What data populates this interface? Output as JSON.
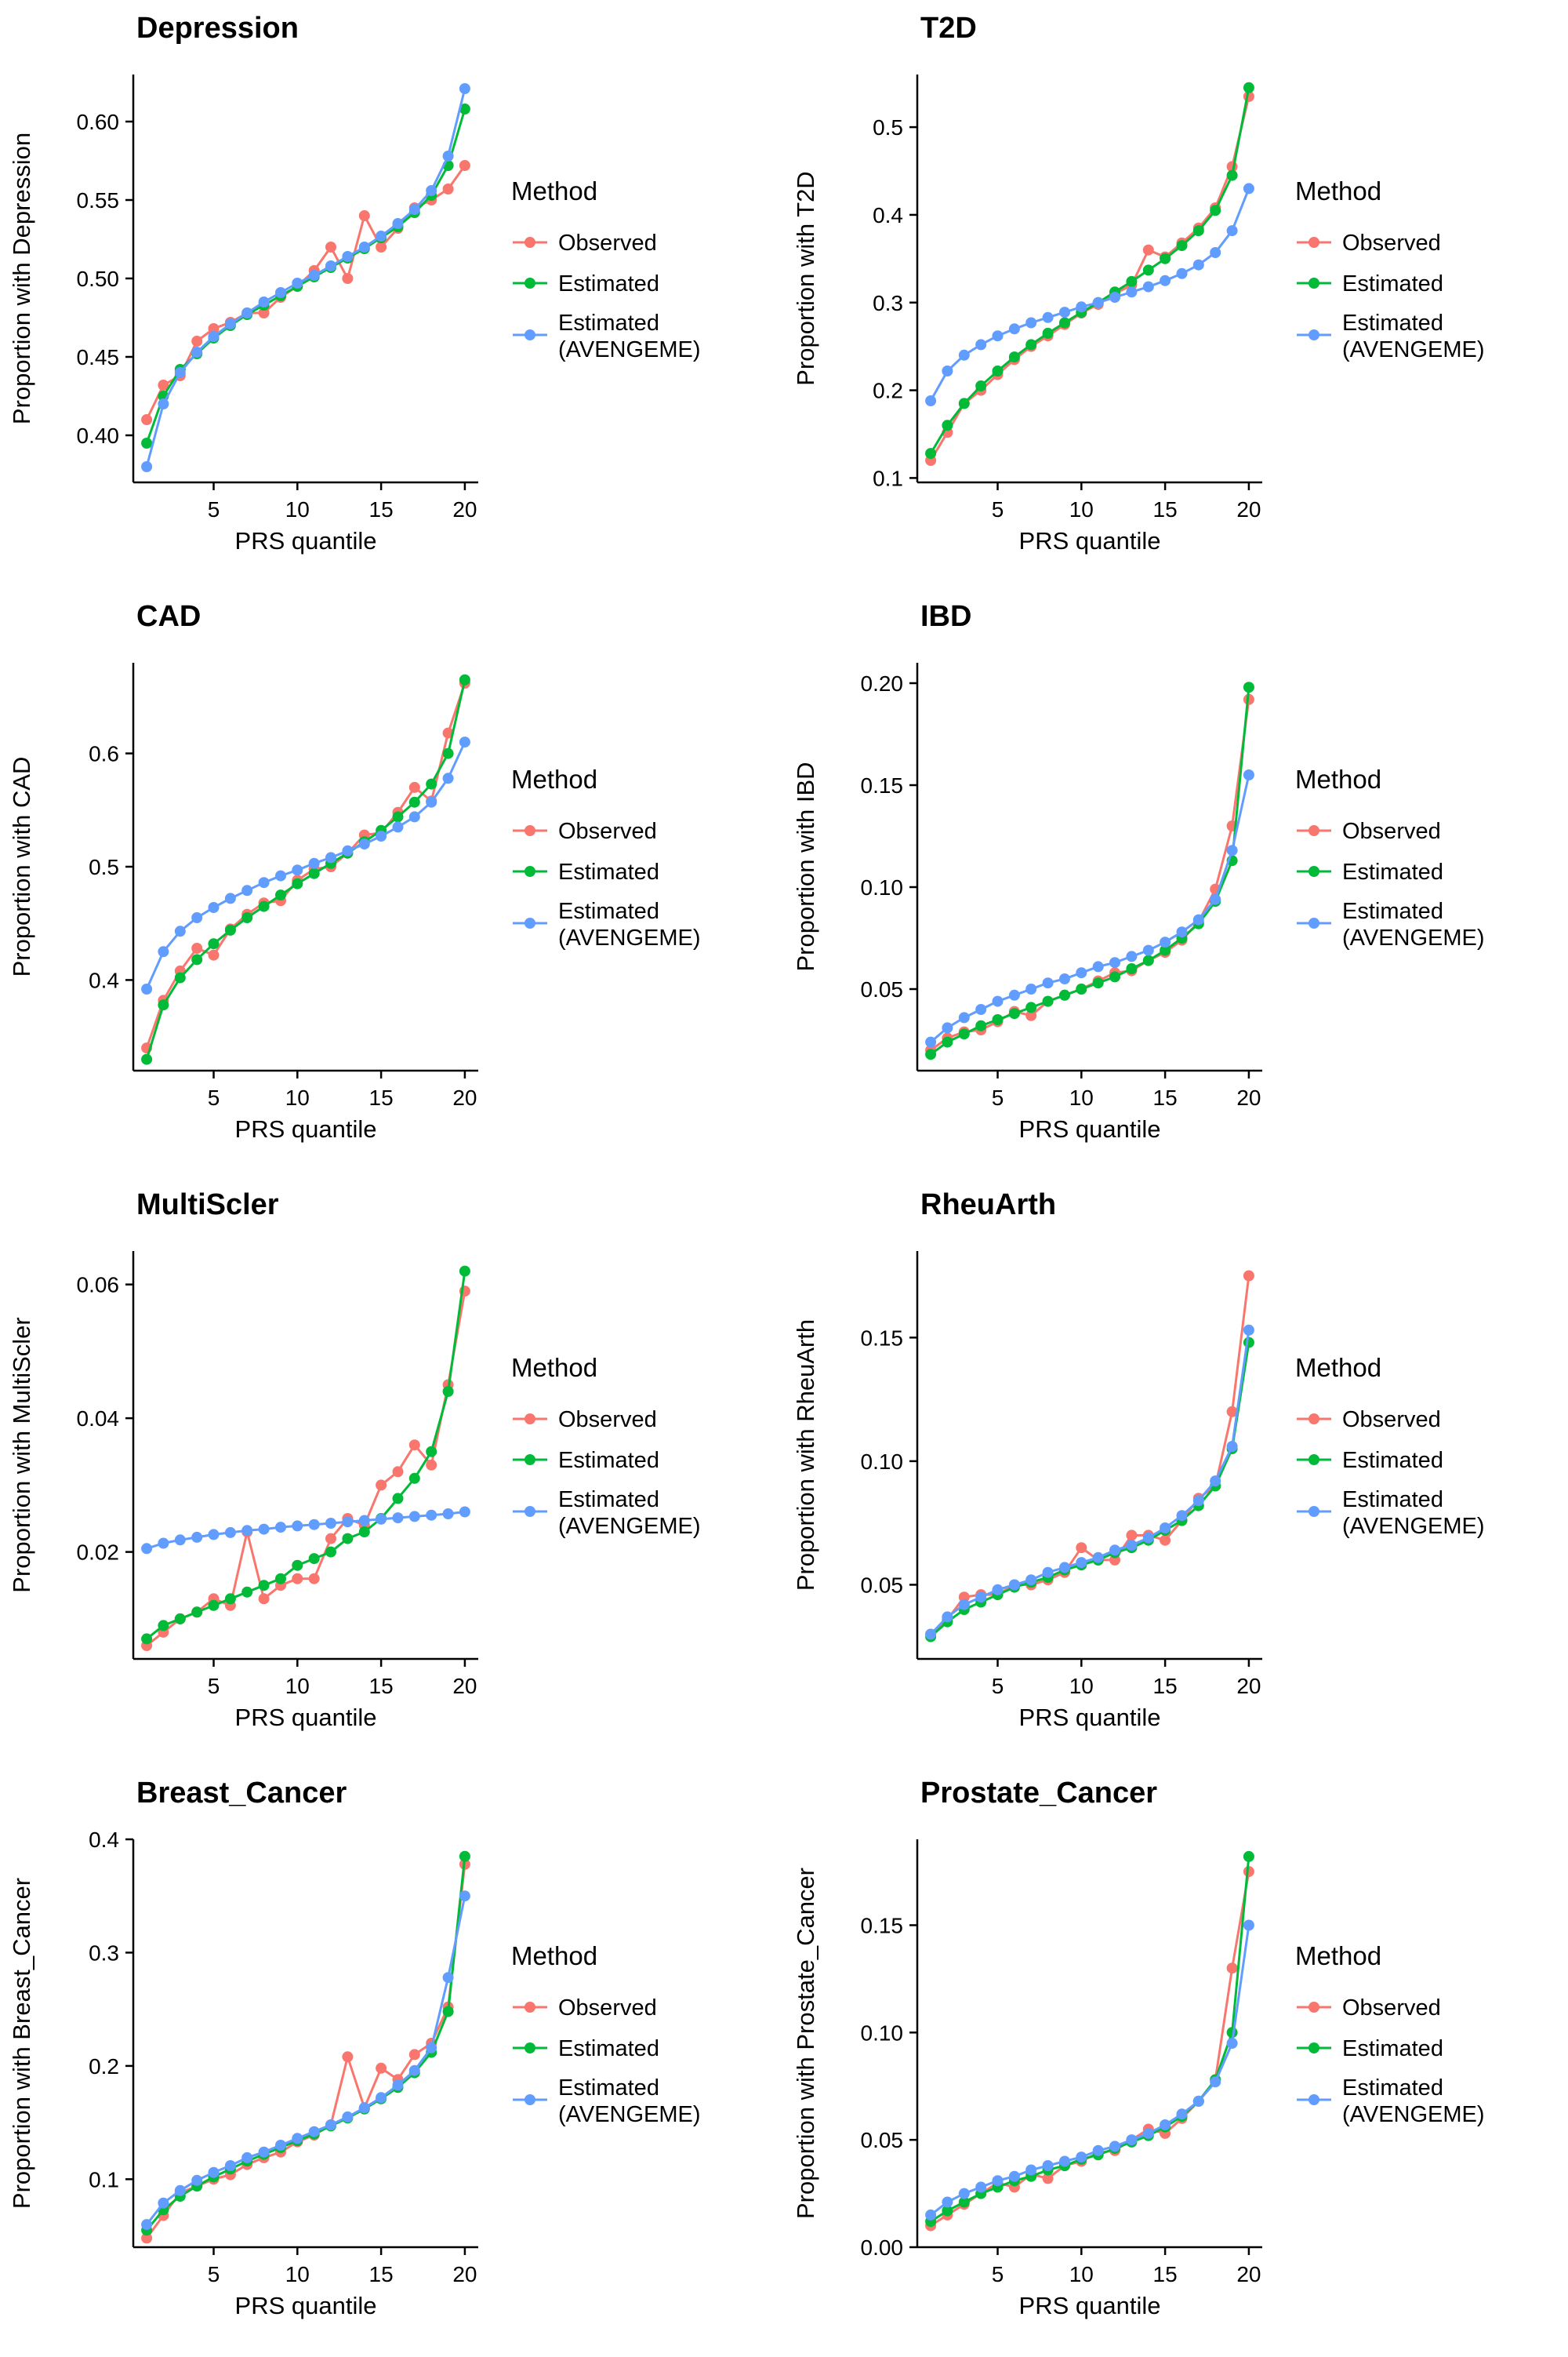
{
  "page": {
    "background": "#ffffff",
    "layout": "4x2 grid of quantile plots"
  },
  "colors": {
    "observed": "#F8766D",
    "estimated": "#00BA38",
    "avengeme": "#619CFF",
    "axis": "#000000",
    "text": "#000000"
  },
  "legend": {
    "title": "Method",
    "position": "right",
    "items": [
      {
        "key": "observed",
        "label": "Observed",
        "label_lines": [
          "Observed"
        ]
      },
      {
        "key": "estimated",
        "label": "Estimated",
        "label_lines": [
          "Estimated"
        ]
      },
      {
        "key": "avengeme",
        "label": "Estimated (AVENGEME)",
        "label_lines": [
          "Estimated",
          "(AVENGEME)"
        ]
      }
    ]
  },
  "x_axis": {
    "label": "PRS quantile",
    "ticks": [
      5,
      10,
      15,
      20
    ],
    "range": [
      1,
      20
    ]
  },
  "chart_data": [
    {
      "type": "line",
      "title": "Depression",
      "xlabel": "PRS quantile",
      "ylabel": "Proportion with Depression",
      "grid": false,
      "ylim": [
        0.37,
        0.63
      ],
      "yticks": [
        "0.40",
        "0.45",
        "0.50",
        "0.55",
        "0.60"
      ],
      "ytick_values": [
        0.4,
        0.45,
        0.5,
        0.55,
        0.6
      ],
      "x": [
        1,
        2,
        3,
        4,
        5,
        6,
        7,
        8,
        9,
        10,
        11,
        12,
        13,
        14,
        15,
        16,
        17,
        18,
        19,
        20
      ],
      "series": [
        {
          "name": "Observed",
          "color_key": "observed",
          "label_lines": [
            "Observed"
          ],
          "values": [
            0.41,
            0.432,
            0.438,
            0.46,
            0.468,
            0.472,
            0.478,
            0.478,
            0.488,
            0.495,
            0.505,
            0.52,
            0.5,
            0.54,
            0.52,
            0.532,
            0.545,
            0.55,
            0.557,
            0.572
          ]
        },
        {
          "name": "Estimated",
          "color_key": "estimated",
          "label_lines": [
            "Estimated"
          ],
          "values": [
            0.395,
            0.425,
            0.442,
            0.452,
            0.462,
            0.47,
            0.477,
            0.483,
            0.489,
            0.495,
            0.501,
            0.507,
            0.513,
            0.519,
            0.526,
            0.533,
            0.542,
            0.553,
            0.572,
            0.608
          ]
        },
        {
          "name": "Estimated (AVENGEME)",
          "color_key": "avengeme",
          "label_lines": [
            "Estimated",
            "(AVENGEME)"
          ],
          "values": [
            0.38,
            0.42,
            0.44,
            0.453,
            0.463,
            0.471,
            0.478,
            0.485,
            0.491,
            0.497,
            0.502,
            0.508,
            0.514,
            0.52,
            0.527,
            0.535,
            0.544,
            0.556,
            0.578,
            0.621
          ]
        }
      ]
    },
    {
      "type": "line",
      "title": "T2D",
      "xlabel": "PRS quantile",
      "ylabel": "Proportion with T2D",
      "grid": false,
      "ylim": [
        0.095,
        0.56
      ],
      "yticks": [
        "0.1",
        "0.2",
        "0.3",
        "0.4",
        "0.5"
      ],
      "ytick_values": [
        0.1,
        0.2,
        0.3,
        0.4,
        0.5
      ],
      "x": [
        1,
        2,
        3,
        4,
        5,
        6,
        7,
        8,
        9,
        10,
        11,
        12,
        13,
        14,
        15,
        16,
        17,
        18,
        19,
        20
      ],
      "series": [
        {
          "name": "Observed",
          "color_key": "observed",
          "label_lines": [
            "Observed"
          ],
          "values": [
            0.12,
            0.152,
            0.185,
            0.2,
            0.218,
            0.235,
            0.25,
            0.262,
            0.275,
            0.288,
            0.298,
            0.31,
            0.32,
            0.36,
            0.352,
            0.368,
            0.385,
            0.408,
            0.455,
            0.535
          ]
        },
        {
          "name": "Estimated",
          "color_key": "estimated",
          "label_lines": [
            "Estimated"
          ],
          "values": [
            0.128,
            0.16,
            0.185,
            0.205,
            0.222,
            0.238,
            0.252,
            0.265,
            0.277,
            0.289,
            0.3,
            0.312,
            0.324,
            0.337,
            0.35,
            0.365,
            0.382,
            0.405,
            0.445,
            0.545
          ]
        },
        {
          "name": "Estimated (AVENGEME)",
          "color_key": "avengeme",
          "label_lines": [
            "Estimated",
            "(AVENGEME)"
          ],
          "values": [
            0.188,
            0.222,
            0.24,
            0.252,
            0.262,
            0.27,
            0.277,
            0.283,
            0.289,
            0.295,
            0.3,
            0.306,
            0.312,
            0.318,
            0.325,
            0.333,
            0.343,
            0.357,
            0.382,
            0.43
          ]
        }
      ]
    },
    {
      "type": "line",
      "title": "CAD",
      "xlabel": "PRS quantile",
      "ylabel": "Proportion with CAD",
      "grid": false,
      "ylim": [
        0.32,
        0.68
      ],
      "yticks": [
        "0.4",
        "0.5",
        "0.6"
      ],
      "ytick_values": [
        0.4,
        0.5,
        0.6
      ],
      "x": [
        1,
        2,
        3,
        4,
        5,
        6,
        7,
        8,
        9,
        10,
        11,
        12,
        13,
        14,
        15,
        16,
        17,
        18,
        19,
        20
      ],
      "series": [
        {
          "name": "Observed",
          "color_key": "observed",
          "label_lines": [
            "Observed"
          ],
          "values": [
            0.34,
            0.382,
            0.408,
            0.428,
            0.422,
            0.445,
            0.458,
            0.468,
            0.47,
            0.488,
            0.498,
            0.5,
            0.512,
            0.528,
            0.53,
            0.548,
            0.57,
            0.558,
            0.618,
            0.662
          ]
        },
        {
          "name": "Estimated",
          "color_key": "estimated",
          "label_lines": [
            "Estimated"
          ],
          "values": [
            0.33,
            0.378,
            0.402,
            0.418,
            0.432,
            0.444,
            0.455,
            0.465,
            0.475,
            0.485,
            0.494,
            0.503,
            0.512,
            0.522,
            0.532,
            0.544,
            0.557,
            0.573,
            0.6,
            0.665
          ]
        },
        {
          "name": "Estimated (AVENGEME)",
          "color_key": "avengeme",
          "label_lines": [
            "Estimated",
            "(AVENGEME)"
          ],
          "values": [
            0.392,
            0.425,
            0.443,
            0.455,
            0.464,
            0.472,
            0.479,
            0.486,
            0.492,
            0.497,
            0.503,
            0.508,
            0.514,
            0.52,
            0.527,
            0.535,
            0.544,
            0.557,
            0.578,
            0.61
          ]
        }
      ]
    },
    {
      "type": "line",
      "title": "IBD",
      "xlabel": "PRS quantile",
      "ylabel": "Proportion with IBD",
      "grid": false,
      "ylim": [
        0.01,
        0.21
      ],
      "yticks": [
        "0.05",
        "0.10",
        "0.15",
        "0.20"
      ],
      "ytick_values": [
        0.05,
        0.1,
        0.15,
        0.2
      ],
      "x": [
        1,
        2,
        3,
        4,
        5,
        6,
        7,
        8,
        9,
        10,
        11,
        12,
        13,
        14,
        15,
        16,
        17,
        18,
        19,
        20
      ],
      "series": [
        {
          "name": "Observed",
          "color_key": "observed",
          "label_lines": [
            "Observed"
          ],
          "values": [
            0.02,
            0.026,
            0.029,
            0.03,
            0.034,
            0.039,
            0.037,
            0.044,
            0.047,
            0.05,
            0.054,
            0.058,
            0.059,
            0.064,
            0.068,
            0.074,
            0.083,
            0.099,
            0.13,
            0.192
          ]
        },
        {
          "name": "Estimated",
          "color_key": "estimated",
          "label_lines": [
            "Estimated"
          ],
          "values": [
            0.018,
            0.024,
            0.028,
            0.032,
            0.035,
            0.038,
            0.041,
            0.044,
            0.047,
            0.05,
            0.053,
            0.056,
            0.06,
            0.064,
            0.069,
            0.075,
            0.082,
            0.093,
            0.113,
            0.198
          ]
        },
        {
          "name": "Estimated (AVENGEME)",
          "color_key": "avengeme",
          "label_lines": [
            "Estimated",
            "(AVENGEME)"
          ],
          "values": [
            0.024,
            0.031,
            0.036,
            0.04,
            0.044,
            0.047,
            0.05,
            0.053,
            0.055,
            0.058,
            0.061,
            0.063,
            0.066,
            0.069,
            0.073,
            0.078,
            0.084,
            0.094,
            0.118,
            0.155
          ]
        }
      ]
    },
    {
      "type": "line",
      "title": "MultiScler",
      "xlabel": "PRS quantile",
      "ylabel": "Proportion with MultiScler",
      "grid": false,
      "ylim": [
        0.004,
        0.065
      ],
      "yticks": [
        "0.02",
        "0.04",
        "0.06"
      ],
      "ytick_values": [
        0.02,
        0.04,
        0.06
      ],
      "x": [
        1,
        2,
        3,
        4,
        5,
        6,
        7,
        8,
        9,
        10,
        11,
        12,
        13,
        14,
        15,
        16,
        17,
        18,
        19,
        20
      ],
      "series": [
        {
          "name": "Observed",
          "color_key": "observed",
          "label_lines": [
            "Observed"
          ],
          "values": [
            0.006,
            0.008,
            0.01,
            0.011,
            0.013,
            0.012,
            0.023,
            0.013,
            0.015,
            0.016,
            0.016,
            0.022,
            0.025,
            0.024,
            0.03,
            0.032,
            0.036,
            0.033,
            0.045,
            0.059
          ]
        },
        {
          "name": "Estimated",
          "color_key": "estimated",
          "label_lines": [
            "Estimated"
          ],
          "values": [
            0.007,
            0.009,
            0.01,
            0.011,
            0.012,
            0.013,
            0.014,
            0.015,
            0.016,
            0.018,
            0.019,
            0.02,
            0.022,
            0.023,
            0.025,
            0.028,
            0.031,
            0.035,
            0.044,
            0.062
          ]
        },
        {
          "name": "Estimated (AVENGEME)",
          "color_key": "avengeme",
          "label_lines": [
            "Estimated",
            "(AVENGEME)"
          ],
          "values": [
            0.0205,
            0.0213,
            0.0218,
            0.0222,
            0.0226,
            0.0229,
            0.0232,
            0.0234,
            0.0237,
            0.0239,
            0.0241,
            0.0243,
            0.0245,
            0.0247,
            0.0249,
            0.0251,
            0.0253,
            0.0255,
            0.0257,
            0.026
          ]
        }
      ]
    },
    {
      "type": "line",
      "title": "RheuArth",
      "xlabel": "PRS quantile",
      "ylabel": "Proportion with RheuArth",
      "grid": false,
      "ylim": [
        0.02,
        0.185
      ],
      "yticks": [
        "0.05",
        "0.10",
        "0.15"
      ],
      "ytick_values": [
        0.05,
        0.1,
        0.15
      ],
      "x": [
        1,
        2,
        3,
        4,
        5,
        6,
        7,
        8,
        9,
        10,
        11,
        12,
        13,
        14,
        15,
        16,
        17,
        18,
        19,
        20
      ],
      "series": [
        {
          "name": "Observed",
          "color_key": "observed",
          "label_lines": [
            "Observed"
          ],
          "values": [
            0.03,
            0.036,
            0.045,
            0.046,
            0.046,
            0.05,
            0.05,
            0.052,
            0.055,
            0.065,
            0.06,
            0.06,
            0.07,
            0.07,
            0.068,
            0.076,
            0.085,
            0.09,
            0.12,
            0.175
          ]
        },
        {
          "name": "Estimated",
          "color_key": "estimated",
          "label_lines": [
            "Estimated"
          ],
          "values": [
            0.029,
            0.035,
            0.04,
            0.043,
            0.046,
            0.049,
            0.051,
            0.053,
            0.056,
            0.058,
            0.06,
            0.063,
            0.065,
            0.068,
            0.072,
            0.076,
            0.082,
            0.09,
            0.105,
            0.148
          ]
        },
        {
          "name": "Estimated (AVENGEME)",
          "color_key": "avengeme",
          "label_lines": [
            "Estimated",
            "(AVENGEME)"
          ],
          "values": [
            0.03,
            0.037,
            0.042,
            0.045,
            0.048,
            0.05,
            0.052,
            0.055,
            0.057,
            0.059,
            0.061,
            0.064,
            0.066,
            0.069,
            0.073,
            0.078,
            0.084,
            0.092,
            0.106,
            0.153
          ]
        }
      ]
    },
    {
      "type": "line",
      "title": "Breast_Cancer",
      "xlabel": "PRS quantile",
      "ylabel": "Proportion with Breast_Cancer",
      "grid": false,
      "ylim": [
        0.04,
        0.4
      ],
      "yticks": [
        "0.1",
        "0.2",
        "0.3",
        "0.4"
      ],
      "ytick_values": [
        0.1,
        0.2,
        0.3,
        0.4
      ],
      "x": [
        1,
        2,
        3,
        4,
        5,
        6,
        7,
        8,
        9,
        10,
        11,
        12,
        13,
        14,
        15,
        16,
        17,
        18,
        19,
        20
      ],
      "series": [
        {
          "name": "Observed",
          "color_key": "observed",
          "label_lines": [
            "Observed"
          ],
          "values": [
            0.048,
            0.068,
            0.088,
            0.094,
            0.1,
            0.104,
            0.113,
            0.119,
            0.124,
            0.133,
            0.139,
            0.148,
            0.208,
            0.163,
            0.198,
            0.188,
            0.21,
            0.22,
            0.252,
            0.378
          ]
        },
        {
          "name": "Estimated",
          "color_key": "estimated",
          "label_lines": [
            "Estimated"
          ],
          "values": [
            0.055,
            0.073,
            0.085,
            0.094,
            0.102,
            0.109,
            0.116,
            0.122,
            0.128,
            0.134,
            0.14,
            0.147,
            0.154,
            0.162,
            0.171,
            0.181,
            0.194,
            0.212,
            0.248,
            0.385
          ]
        },
        {
          "name": "Estimated (AVENGEME)",
          "color_key": "avengeme",
          "label_lines": [
            "Estimated",
            "(AVENGEME)"
          ],
          "values": [
            0.06,
            0.079,
            0.09,
            0.099,
            0.106,
            0.112,
            0.119,
            0.124,
            0.13,
            0.136,
            0.142,
            0.148,
            0.155,
            0.163,
            0.172,
            0.183,
            0.196,
            0.216,
            0.278,
            0.35
          ]
        }
      ]
    },
    {
      "type": "line",
      "title": "Prostate_Cancer",
      "xlabel": "PRS quantile",
      "ylabel": "Proportion with Prostate_Cancer",
      "grid": false,
      "ylim": [
        0.0,
        0.19
      ],
      "yticks": [
        "0.00",
        "0.05",
        "0.10",
        "0.15"
      ],
      "ytick_values": [
        0.0,
        0.05,
        0.1,
        0.15
      ],
      "x": [
        1,
        2,
        3,
        4,
        5,
        6,
        7,
        8,
        9,
        10,
        11,
        12,
        13,
        14,
        15,
        16,
        17,
        18,
        19,
        20
      ],
      "series": [
        {
          "name": "Observed",
          "color_key": "observed",
          "label_lines": [
            "Observed"
          ],
          "values": [
            0.01,
            0.015,
            0.02,
            0.025,
            0.03,
            0.028,
            0.034,
            0.032,
            0.038,
            0.04,
            0.044,
            0.045,
            0.05,
            0.055,
            0.053,
            0.06,
            0.068,
            0.078,
            0.13,
            0.175
          ]
        },
        {
          "name": "Estimated",
          "color_key": "estimated",
          "label_lines": [
            "Estimated"
          ],
          "values": [
            0.012,
            0.017,
            0.021,
            0.025,
            0.028,
            0.031,
            0.033,
            0.036,
            0.038,
            0.041,
            0.043,
            0.046,
            0.049,
            0.052,
            0.056,
            0.061,
            0.068,
            0.078,
            0.1,
            0.182
          ]
        },
        {
          "name": "Estimated (AVENGEME)",
          "color_key": "avengeme",
          "label_lines": [
            "Estimated",
            "(AVENGEME)"
          ],
          "values": [
            0.015,
            0.021,
            0.025,
            0.028,
            0.031,
            0.033,
            0.036,
            0.038,
            0.04,
            0.042,
            0.045,
            0.047,
            0.05,
            0.053,
            0.057,
            0.062,
            0.068,
            0.077,
            0.095,
            0.15
          ]
        }
      ]
    }
  ]
}
